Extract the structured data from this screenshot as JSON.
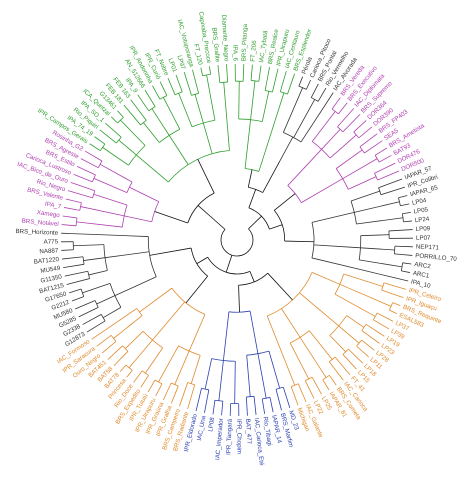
{
  "clusters": [
    {
      "key": "g1",
      "color": "#2e9e2e",
      "labels": [
        "IPA_6",
        "BRS_Pitanga",
        "FT_206",
        "IAC_Tybatã",
        "BRS_Realce",
        "IPR_Uirapuru",
        "IAC_Centauro",
        "BRS_Esplendor"
      ]
    },
    {
      "key": "g2",
      "color": "#333333",
      "labels": [
        "Pérola",
        "Carioca_Pitoco",
        "BRS_Pontal",
        "Rio_Vermelho",
        "IAC_Alvorada"
      ]
    },
    {
      "key": "g3",
      "color": "#b040b0",
      "labels": [
        "BRS_Vereda",
        "BRS_Executivo",
        "IAC_Diplomata",
        "BRS_Supremo",
        "DOR364",
        "DOR390",
        "BRS_FP403",
        "SEA5",
        "BRS_Ametista",
        "BAT93",
        "DOR476",
        "DOR500"
      ]
    },
    {
      "key": "g4",
      "color": "#333333",
      "labels": [
        "IAPAR_57",
        "IPR_Colibri",
        "IAPAR_65",
        "LP04",
        "LP05",
        "LP24",
        "LP09",
        "LP07",
        "NEP171",
        "PORRILLO_70",
        "ARC2",
        "ARC1",
        "IPA_10"
      ]
    },
    {
      "key": "g5",
      "color": "#e08a2c",
      "labels": [
        "IPR_Celeiro",
        "IPR_Iguaçu",
        "BRS_Requinte",
        "ESAL583",
        "LP37",
        "LP39",
        "LP19",
        "LP23",
        "LP28",
        "LP11",
        "LP18",
        "LP15",
        "FT_41",
        "IAC_Carioca",
        "BRS_Cometa",
        "IAPAR_81",
        "LP25",
        "LP22",
        "IAC_Galante",
        "Michigan"
      ]
    },
    {
      "key": "g6",
      "color": "#2a3fb0",
      "labels": [
        "MD_23",
        "BRS_Marfim",
        "IAPAR_14",
        "Rio_Tibagi",
        "IAC_Carioca_Eté",
        "BAT_477",
        "IPR_Chopim",
        "IPR_Tangará",
        "IAC_Imperador",
        "LP08",
        "IAC_Una",
        "IPR_Eldorado"
      ]
    },
    {
      "key": "g7",
      "color": "#e08a2c",
      "labels": [
        "BRS_Radiante",
        "BRS_Campeiro",
        "IPR_Gralha",
        "IPR_Graúna",
        "IPR_Uirapuru",
        "IPR_Tuiuiú",
        "BRS_Expedito",
        "Rio_Doce",
        "Princesa",
        "BAT78",
        "BAT58",
        "BAT451",
        "Ouro_Negro",
        "IPR_Saracura",
        "IAC_Formoso"
      ]
    },
    {
      "key": "g8",
      "color": "#333333",
      "labels": [
        "G12873",
        "G2338",
        "G5285",
        "MU580",
        "G2212",
        "G17650",
        "BAT1215",
        "G11350",
        "MU549",
        "BAT1220",
        "NA887",
        "A775",
        "BRS_Horizonte"
      ]
    },
    {
      "key": "g9",
      "color": "#b040b0",
      "labels": [
        "BRS_Notável",
        "Xamego",
        "IPA_7",
        "BRS_Valente",
        "Rio_Negro",
        "IAC_Bico_de_Ouro",
        "Carioca_Lustroso",
        "BRS_Estilo",
        "BRS_Agreste",
        "Rosinha_G2"
      ]
    },
    {
      "key": "g10",
      "color": "#2e9e2e",
      "labels": [
        "IPR_Campos_Gerais",
        "IPA_74_19",
        "Rio_Piquiri",
        "IPA_SO_1",
        "ICA_Quetzal",
        "G13461",
        "FEB 181",
        "FEB 163",
        "IPA_9",
        "AN_512666",
        "IPR_Andorinha",
        "IPR_Curió",
        "FT_Nobre",
        "LP01",
        "LP97",
        "IAC_Votuporanga",
        "FT_120",
        "Capixaba_Precoce",
        "BRS_Grafite",
        "Diamante_Negro"
      ]
    }
  ]
}
